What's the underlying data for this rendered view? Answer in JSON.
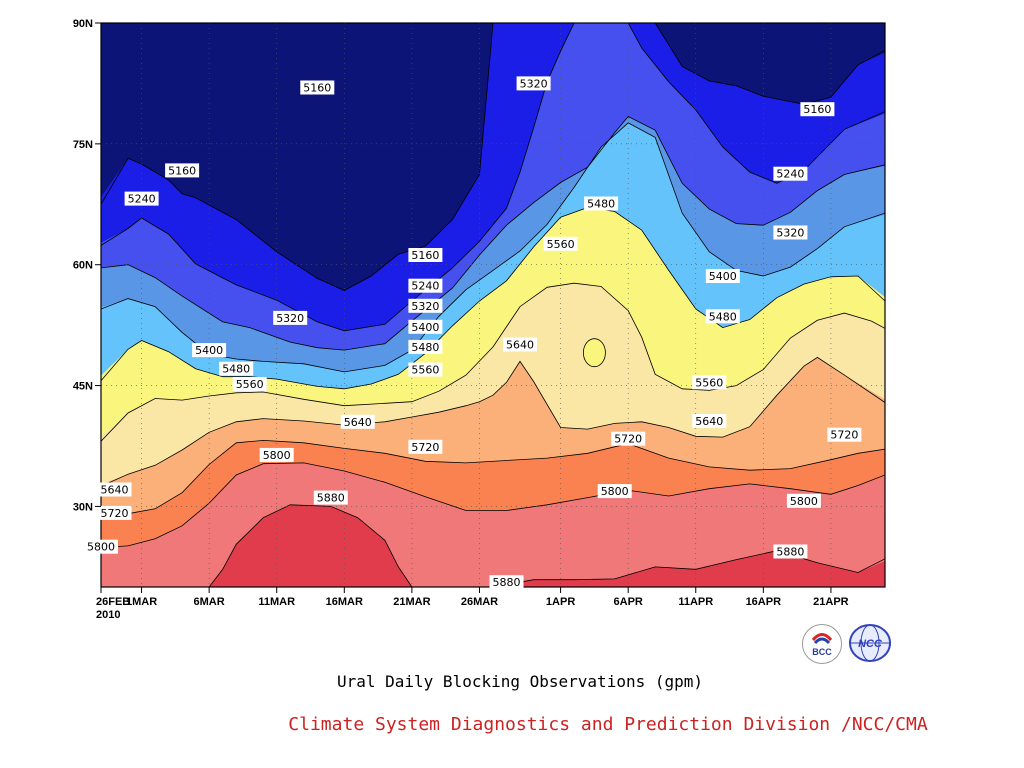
{
  "chart_data": {
    "type": "heatmap",
    "subtype": "filled-contour",
    "title": "Ural Daily Blocking Observations (gpm)",
    "units": "gpm",
    "x_axis": {
      "type": "date",
      "range": [
        "2010-02-26",
        "2010-04-25"
      ],
      "ticks": [
        {
          "date": "2010-02-26",
          "label": "26FEB",
          "sublabel": "2010"
        },
        {
          "date": "2010-03-01",
          "label": "1MAR"
        },
        {
          "date": "2010-03-06",
          "label": "6MAR"
        },
        {
          "date": "2010-03-11",
          "label": "11MAR"
        },
        {
          "date": "2010-03-16",
          "label": "16MAR"
        },
        {
          "date": "2010-03-21",
          "label": "21MAR"
        },
        {
          "date": "2010-03-26",
          "label": "26MAR"
        },
        {
          "date": "2010-04-01",
          "label": "1APR"
        },
        {
          "date": "2010-04-06",
          "label": "6APR"
        },
        {
          "date": "2010-04-11",
          "label": "11APR"
        },
        {
          "date": "2010-04-16",
          "label": "16APR"
        },
        {
          "date": "2010-04-21",
          "label": "21APR"
        }
      ]
    },
    "y_axis": {
      "units": "degrees N",
      "range": [
        20,
        90
      ],
      "ticks": [
        {
          "value": 30,
          "label": "30N"
        },
        {
          "value": 45,
          "label": "45N"
        },
        {
          "value": 60,
          "label": "60N"
        },
        {
          "value": 75,
          "label": "75N"
        },
        {
          "value": 90,
          "label": "90N"
        }
      ]
    },
    "grid": "dotted",
    "contour_levels": [
      5160,
      5240,
      5320,
      5400,
      5480,
      5560,
      5640,
      5720,
      5800,
      5880
    ],
    "level_colors": {
      "below_5160": "#0c1478",
      "5160_5240": "#1a1ee6",
      "5240_5320": "#4650ee",
      "5320_5400": "#5a96e6",
      "5400_5480": "#64c3fa",
      "5480_5560": "#faf57d",
      "5560_5640": "#fae6a5",
      "5640_5720": "#fab078",
      "5720_5800": "#fa8250",
      "5800_5880": "#f07878",
      "above_5880": "#e13c4b"
    },
    "boundary_lines": [
      {
        "level": 5160,
        "x": [
          "2010-02-26",
          "2010-02-28",
          "2010-03-01",
          "2010-03-03",
          "2010-03-04",
          "2010-03-05",
          "2010-03-08",
          "2010-03-11",
          "2010-03-14",
          "2010-03-16",
          "2010-03-18",
          "2010-03-20",
          "2010-03-22",
          "2010-03-24",
          "2010-03-26",
          "2010-03-27"
        ],
        "lat": [
          67.5,
          73.2,
          72.5,
          70.5,
          68.8,
          68.3,
          65.6,
          61.6,
          58.3,
          56.8,
          58.6,
          61.3,
          62.3,
          65.6,
          71.2,
          90
        ]
      },
      {
        "level": 5160,
        "x": [
          "2010-04-08",
          "2010-04-10",
          "2010-04-12",
          "2010-04-14",
          "2010-04-16",
          "2010-04-19",
          "2010-04-21",
          "2010-04-23",
          "2010-04-25"
        ],
        "lat": [
          90,
          84.6,
          82.8,
          82.2,
          80.9,
          79.9,
          80.8,
          84.8,
          86.6
        ]
      },
      {
        "level": 5240,
        "x": [
          "2010-02-26",
          "2010-02-28",
          "2010-03-01",
          "2010-03-03",
          "2010-03-05",
          "2010-03-08",
          "2010-03-11",
          "2010-03-14",
          "2010-03-16",
          "2010-03-19",
          "2010-03-21",
          "2010-03-24",
          "2010-03-26",
          "2010-03-28",
          "2010-03-29",
          "2010-03-30",
          "2010-03-31",
          "2010-04-01",
          "2010-04-02"
        ],
        "lat": [
          62.4,
          64.5,
          65.8,
          63.8,
          60.1,
          57.5,
          55.6,
          52.9,
          51.8,
          52.6,
          55.5,
          59.6,
          62.9,
          67.0,
          71.5,
          77.0,
          82.7,
          86.5,
          90
        ]
      },
      {
        "level": 5240,
        "x": [
          "2010-04-06",
          "2010-04-07",
          "2010-04-09",
          "2010-04-11",
          "2010-04-13",
          "2010-04-15",
          "2010-04-17",
          "2010-04-19",
          "2010-04-22",
          "2010-04-25"
        ],
        "lat": [
          90,
          86.9,
          82.7,
          79.2,
          74.6,
          71.5,
          70.1,
          71.7,
          76.8,
          79.0
        ]
      },
      {
        "level": 5320,
        "x": [
          "2010-02-26",
          "2010-02-28",
          "2010-03-02",
          "2010-03-04",
          "2010-03-07",
          "2010-03-09",
          "2010-03-12",
          "2010-03-14",
          "2010-03-16",
          "2010-03-19",
          "2010-03-21",
          "2010-03-24",
          "2010-03-26",
          "2010-03-28",
          "2010-03-30",
          "2010-04-01",
          "2010-04-03",
          "2010-04-05",
          "2010-04-06",
          "2010-04-08",
          "2010-04-10",
          "2010-04-12",
          "2010-04-14",
          "2010-04-16",
          "2010-04-18",
          "2010-04-20",
          "2010-04-22",
          "2010-04-25"
        ],
        "lat": [
          59.6,
          60.0,
          58.4,
          56.1,
          52.9,
          52.2,
          50.4,
          49.7,
          49.4,
          50.2,
          53.0,
          57.1,
          61.2,
          64.9,
          67.7,
          70.2,
          72.1,
          76.4,
          78.4,
          76.7,
          70.1,
          66.9,
          65.1,
          64.9,
          66.5,
          69.2,
          71.2,
          72.4
        ]
      },
      {
        "level": 5400,
        "x": [
          "2010-02-26",
          "2010-02-28",
          "2010-03-02",
          "2010-03-04",
          "2010-03-06",
          "2010-03-08",
          "2010-03-10",
          "2010-03-13",
          "2010-03-16",
          "2010-03-19",
          "2010-03-21",
          "2010-03-23",
          "2010-03-25",
          "2010-03-27",
          "2010-03-29",
          "2010-03-31",
          "2010-04-02",
          "2010-04-04",
          "2010-04-06",
          "2010-04-08",
          "2010-04-10",
          "2010-04-12",
          "2010-04-14",
          "2010-04-16",
          "2010-04-18",
          "2010-04-20",
          "2010-04-22",
          "2010-04-25"
        ],
        "lat": [
          54.5,
          55.8,
          54.8,
          51.6,
          48.9,
          48.3,
          48.0,
          47.7,
          46.7,
          47.5,
          49.4,
          53.6,
          56.9,
          59.3,
          61.7,
          65.0,
          69.6,
          74.6,
          77.6,
          75.8,
          66.4,
          61.6,
          59.3,
          58.6,
          59.7,
          62.0,
          64.7,
          66.4
        ]
      },
      {
        "level": 5480,
        "x": [
          "2010-02-26",
          "2010-02-28",
          "2010-03-01",
          "2010-03-03",
          "2010-03-05",
          "2010-03-07",
          "2010-03-09",
          "2010-03-11",
          "2010-03-14",
          "2010-03-16",
          "2010-03-18",
          "2010-03-20",
          "2010-03-22",
          "2010-03-24",
          "2010-03-26",
          "2010-03-28",
          "2010-03-30",
          "2010-04-01",
          "2010-04-03",
          "2010-04-05",
          "2010-04-07",
          "2010-04-09",
          "2010-04-11",
          "2010-04-13",
          "2010-04-15",
          "2010-04-17",
          "2010-04-19",
          "2010-04-21",
          "2010-04-23",
          "2010-04-25"
        ],
        "lat": [
          45.6,
          49.5,
          50.6,
          49.2,
          47.1,
          46.1,
          46.1,
          45.8,
          44.9,
          44.6,
          45.2,
          46.4,
          49.0,
          52.4,
          55.5,
          58.0,
          62.2,
          65.9,
          67.1,
          66.6,
          64.3,
          59.3,
          54.5,
          52.2,
          53.2,
          55.9,
          57.6,
          58.5,
          58.6,
          55.5
        ]
      },
      {
        "level": 5560,
        "x": [
          "2010-02-26",
          "2010-02-28",
          "2010-03-02",
          "2010-03-04",
          "2010-03-06",
          "2010-03-08",
          "2010-03-10",
          "2010-03-13",
          "2010-03-16",
          "2010-03-19",
          "2010-03-21",
          "2010-03-23",
          "2010-03-25",
          "2010-03-27",
          "2010-03-29",
          "2010-03-31",
          "2010-04-02",
          "2010-04-04",
          "2010-04-06",
          "2010-04-07",
          "2010-04-08",
          "2010-04-10",
          "2010-04-12",
          "2010-04-14",
          "2010-04-16",
          "2010-04-18",
          "2010-04-20",
          "2010-04-22",
          "2010-04-24",
          "2010-04-25"
        ],
        "lat": [
          38.1,
          41.6,
          43.4,
          43.2,
          43.7,
          44.1,
          44.2,
          43.3,
          42.5,
          42.8,
          43.0,
          44.3,
          46.3,
          49.8,
          54.8,
          57.2,
          57.7,
          57.3,
          54.3,
          51.0,
          46.4,
          44.6,
          44.4,
          45.0,
          47.0,
          50.9,
          53.1,
          54.0,
          53.0,
          52.1
        ]
      },
      {
        "level": 5640,
        "x": [
          "2010-02-26",
          "2010-02-28",
          "2010-03-02",
          "2010-03-04",
          "2010-03-06",
          "2010-03-08",
          "2010-03-10",
          "2010-03-13",
          "2010-03-16",
          "2010-03-19",
          "2010-03-21",
          "2010-03-23",
          "2010-03-25",
          "2010-03-26",
          "2010-03-27",
          "2010-03-28",
          "2010-03-29",
          "2010-03-30",
          "2010-04-01",
          "2010-04-03",
          "2010-04-05",
          "2010-04-07",
          "2010-04-09",
          "2010-04-11",
          "2010-04-13",
          "2010-04-15",
          "2010-04-17",
          "2010-04-19",
          "2010-04-20",
          "2010-04-22",
          "2010-04-25"
        ],
        "lat": [
          32.5,
          34.0,
          35.1,
          37.0,
          39.2,
          40.5,
          40.9,
          40.6,
          40.1,
          40.5,
          41.1,
          41.7,
          42.5,
          43.0,
          43.8,
          45.4,
          48.0,
          45.5,
          39.8,
          39.6,
          40.3,
          40.5,
          39.8,
          38.7,
          38.6,
          39.9,
          43.8,
          47.4,
          48.5,
          46.3,
          42.9
        ]
      },
      {
        "level": 5720,
        "x": [
          "2010-02-26",
          "2010-02-28",
          "2010-03-02",
          "2010-03-04",
          "2010-03-06",
          "2010-03-08",
          "2010-03-10",
          "2010-03-13",
          "2010-03-16",
          "2010-03-19",
          "2010-03-22",
          "2010-03-25",
          "2010-03-28",
          "2010-03-31",
          "2010-04-03",
          "2010-04-06",
          "2010-04-09",
          "2010-04-12",
          "2010-04-15",
          "2010-04-18",
          "2010-04-21",
          "2010-04-23",
          "2010-04-25"
        ],
        "lat": [
          28.7,
          29.1,
          29.7,
          31.7,
          35.2,
          37.9,
          38.2,
          37.9,
          37.2,
          36.6,
          35.6,
          35.4,
          35.7,
          36.0,
          36.6,
          37.8,
          36.0,
          34.9,
          34.5,
          34.7,
          35.8,
          36.6,
          37.1
        ]
      },
      {
        "level": 5800,
        "x": [
          "2010-02-26",
          "2010-02-28",
          "2010-03-02",
          "2010-03-04",
          "2010-03-06",
          "2010-03-08",
          "2010-03-10",
          "2010-03-13",
          "2010-03-16",
          "2010-03-19",
          "2010-03-22",
          "2010-03-25",
          "2010-03-28",
          "2010-03-31",
          "2010-04-03",
          "2010-04-06",
          "2010-04-09",
          "2010-04-12",
          "2010-04-15",
          "2010-04-18",
          "2010-04-21",
          "2010-04-23",
          "2010-04-25"
        ],
        "lat": [
          24.9,
          25.1,
          26.0,
          27.6,
          30.4,
          33.9,
          35.3,
          35.4,
          34.4,
          33.0,
          31.2,
          29.5,
          29.5,
          30.2,
          31.1,
          32.0,
          31.3,
          32.2,
          32.8,
          32.2,
          31.5,
          32.6,
          33.9
        ]
      },
      {
        "level": 5880,
        "x": [
          "2010-03-06",
          "2010-03-07",
          "2010-03-08",
          "2010-03-10",
          "2010-03-12",
          "2010-03-15",
          "2010-03-17",
          "2010-03-19",
          "2010-03-20",
          "2010-03-21"
        ],
        "lat": [
          20,
          22.2,
          25.3,
          28.6,
          30.2,
          30.0,
          28.6,
          25.8,
          22.5,
          20
        ]
      },
      {
        "level": 5880,
        "x": [
          "2010-03-27",
          "2010-03-30",
          "2010-04-02",
          "2010-04-05",
          "2010-04-08",
          "2010-04-11",
          "2010-04-14",
          "2010-04-17",
          "2010-04-20",
          "2010-04-23",
          "2010-04-25"
        ],
        "lat": [
          20,
          20.9,
          20.9,
          21.0,
          22.5,
          22.2,
          23.4,
          24.5,
          23.0,
          21.8,
          23.5
        ]
      },
      {
        "level": 5560,
        "closed": true,
        "x": [
          "2010-04-03",
          "2010-04-04",
          "2010-04-04",
          "2010-04-04",
          "2010-04-03",
          "2010-04-03"
        ],
        "lat": [
          50.4,
          49.4,
          48.7,
          48.0,
          48.4,
          49.6
        ]
      }
    ],
    "contour_labels": [
      {
        "value": 5160,
        "date": "2010-03-14",
        "lat": 82.0
      },
      {
        "value": 5160,
        "date": "2010-03-04",
        "lat": 71.7
      },
      {
        "value": 5240,
        "date": "2010-03-01",
        "lat": 68.2
      },
      {
        "value": 5160,
        "date": "2010-03-22",
        "lat": 61.2
      },
      {
        "value": 5320,
        "date": "2010-03-30",
        "lat": 82.5
      },
      {
        "value": 5160,
        "date": "2010-04-20",
        "lat": 79.3
      },
      {
        "value": 5240,
        "date": "2010-04-18",
        "lat": 71.3
      },
      {
        "value": 5320,
        "date": "2010-04-18",
        "lat": 64.0
      },
      {
        "value": 5480,
        "date": "2010-04-04",
        "lat": 67.6
      },
      {
        "value": 5560,
        "date": "2010-04-01",
        "lat": 62.6
      },
      {
        "value": 5400,
        "date": "2010-04-13",
        "lat": 58.6
      },
      {
        "value": 5480,
        "date": "2010-04-13",
        "lat": 53.6
      },
      {
        "value": 5320,
        "date": "2010-03-12",
        "lat": 53.4
      },
      {
        "value": 5240,
        "date": "2010-03-22",
        "lat": 57.4
      },
      {
        "value": 5320,
        "date": "2010-03-22",
        "lat": 54.9
      },
      {
        "value": 5400,
        "date": "2010-03-22",
        "lat": 52.3
      },
      {
        "value": 5480,
        "date": "2010-03-22",
        "lat": 49.8
      },
      {
        "value": 5560,
        "date": "2010-03-22",
        "lat": 47.0
      },
      {
        "value": 5400,
        "date": "2010-03-06",
        "lat": 49.4
      },
      {
        "value": 5480,
        "date": "2010-03-08",
        "lat": 47.1
      },
      {
        "value": 5560,
        "date": "2010-03-09",
        "lat": 45.2
      },
      {
        "value": 5640,
        "date": "2010-03-17",
        "lat": 40.5
      },
      {
        "value": 5640,
        "date": "2010-03-29",
        "lat": 50.1
      },
      {
        "value": 5560,
        "date": "2010-04-12",
        "lat": 45.4
      },
      {
        "value": 5640,
        "date": "2010-04-12",
        "lat": 40.6
      },
      {
        "value": 5720,
        "date": "2010-03-22",
        "lat": 37.4
      },
      {
        "value": 5720,
        "date": "2010-04-06",
        "lat": 38.4
      },
      {
        "value": 5720,
        "date": "2010-04-22",
        "lat": 38.9
      },
      {
        "value": 5800,
        "date": "2010-03-11",
        "lat": 36.4
      },
      {
        "value": 5880,
        "date": "2010-03-15",
        "lat": 31.1
      },
      {
        "value": 5800,
        "date": "2010-04-05",
        "lat": 31.9
      },
      {
        "value": 5800,
        "date": "2010-04-19",
        "lat": 30.7
      },
      {
        "value": 5880,
        "date": "2010-04-18",
        "lat": 24.4
      },
      {
        "value": 5880,
        "date": "2010-03-28",
        "lat": 20.6
      },
      {
        "value": 5640,
        "date": "2010-02-27",
        "lat": 32.1
      },
      {
        "value": 5720,
        "date": "2010-02-27",
        "lat": 29.2
      },
      {
        "value": 5800,
        "date": "2010-02-26",
        "lat": 25.0
      }
    ]
  },
  "credit": "Climate System Diagnostics and Prediction Division /NCC/CMA",
  "logos": [
    {
      "name": "bcc-logo",
      "text": "BCC",
      "color": "#2a3a9a"
    },
    {
      "name": "ncc-logo",
      "text": "NCC",
      "color": "#3344bb"
    }
  ]
}
